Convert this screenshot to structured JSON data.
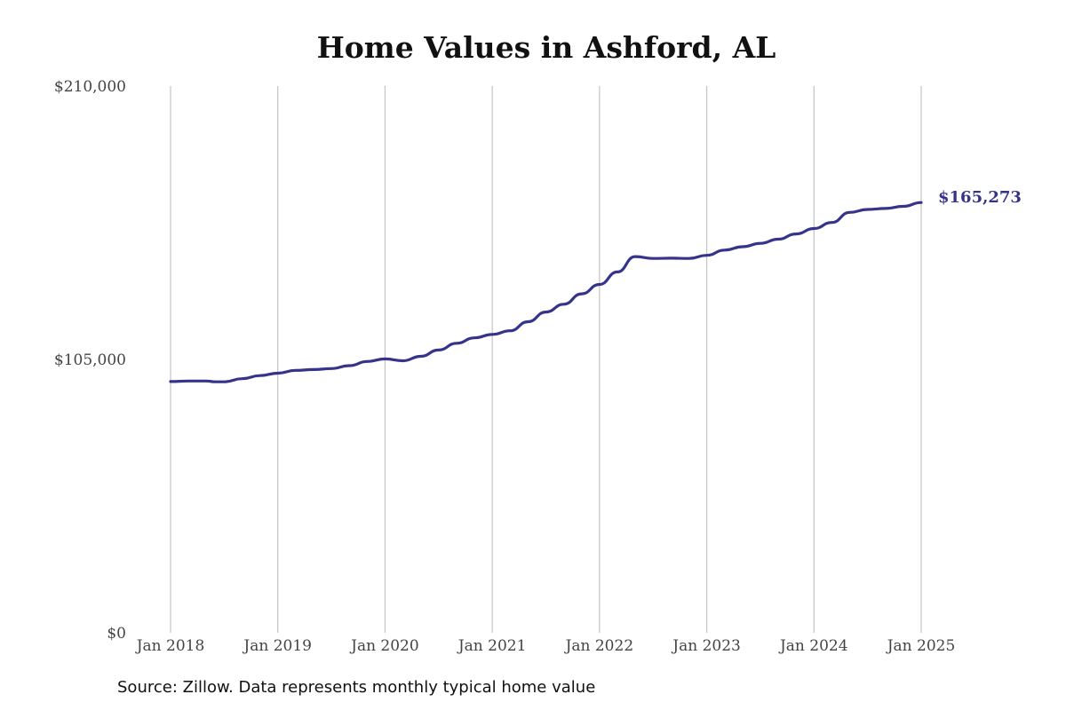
{
  "chart_data": {
    "type": "line",
    "title": "Home Values in Ashford, AL",
    "xlabel": "",
    "ylabel": "",
    "source": "Source: Zillow. Data represents monthly typical home value",
    "x_tick_labels": [
      "Jan 2018",
      "Jan 2019",
      "Jan 2020",
      "Jan 2021",
      "Jan 2022",
      "Jan 2023",
      "Jan 2024",
      "Jan 2025"
    ],
    "y_tick_labels": [
      "$0",
      "$105,000",
      "$210,000"
    ],
    "y_ticks": [
      0,
      105000,
      210000
    ],
    "ylim": [
      0,
      210000
    ],
    "xlim": [
      "2018-01",
      "2025-01"
    ],
    "grid": "vertical",
    "line_color": "#35348a",
    "end_label": "$165,273",
    "series": [
      {
        "x": [
          "2018-01",
          "2018-03",
          "2018-05",
          "2018-06",
          "2018-07",
          "2018-09",
          "2018-11",
          "2019-01",
          "2019-03",
          "2019-05",
          "2019-07",
          "2019-09",
          "2019-11",
          "2020-01",
          "2020-03",
          "2020-05",
          "2020-07",
          "2020-09",
          "2020-11",
          "2021-01",
          "2021-03",
          "2021-05",
          "2021-07",
          "2021-09",
          "2021-11",
          "2022-01",
          "2022-03",
          "2022-05",
          "2022-07",
          "2022-09",
          "2022-11",
          "2023-01",
          "2023-03",
          "2023-05",
          "2023-07",
          "2023-09",
          "2023-11",
          "2024-01",
          "2024-03",
          "2024-05",
          "2024-07",
          "2024-09",
          "2024-11",
          "2025-01"
        ],
        "values": [
          96500,
          96700,
          96700,
          96400,
          96400,
          97600,
          98800,
          99700,
          100800,
          101100,
          101500,
          102600,
          104200,
          105200,
          104500,
          106200,
          108600,
          111200,
          113300,
          114600,
          116000,
          119500,
          123200,
          126200,
          130200,
          133800,
          138600,
          144500,
          143800,
          143900,
          143800,
          145000,
          147000,
          148300,
          149600,
          151200,
          153200,
          155300,
          157600,
          161500,
          162600,
          163000,
          163800,
          165273
        ]
      }
    ]
  }
}
